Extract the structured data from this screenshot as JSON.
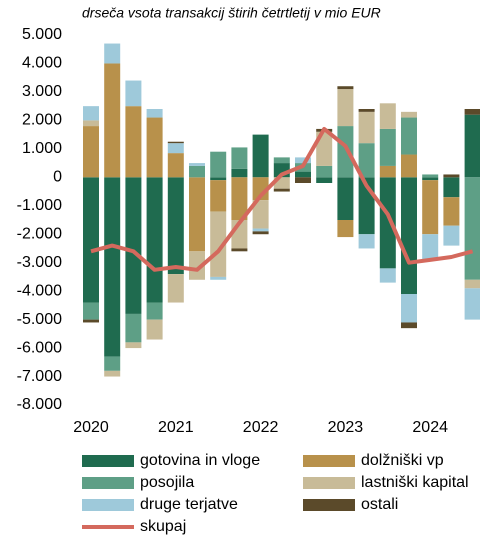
{
  "chart_data": {
    "type": "bar",
    "stacked": true,
    "title": "drseča vsota transakcij štirih četrtletij v mio EUR",
    "categories": [
      "2020",
      null,
      null,
      null,
      "2021",
      null,
      null,
      null,
      "2022",
      null,
      null,
      null,
      "2023",
      null,
      null,
      null,
      "2024",
      null,
      null
    ],
    "ylim": [
      -8000,
      5000
    ],
    "yticks": [
      {
        "value": 5000,
        "label": "5.000"
      },
      {
        "value": 4000,
        "label": "4.000"
      },
      {
        "value": 3000,
        "label": "3.000"
      },
      {
        "value": 2000,
        "label": "2.000"
      },
      {
        "value": 1000,
        "label": "1.000"
      },
      0,
      {
        "value": -1000,
        "label": "-1.000"
      },
      {
        "value": -2000,
        "label": "-2.000"
      },
      {
        "value": -3000,
        "label": "-3.000"
      },
      {
        "value": -4000,
        "label": "-4.000"
      },
      {
        "value": -5000,
        "label": "-5.000"
      },
      {
        "value": -6000,
        "label": "-6.000"
      },
      {
        "value": -7000,
        "label": "-7.000"
      },
      {
        "value": -8000,
        "label": "-8.000"
      }
    ],
    "series": [
      {
        "name": "gotovina in vloge",
        "color": "#1f6b4f",
        "values": [
          -4400,
          -6300,
          -4800,
          -4400,
          -3400,
          0,
          -100,
          300,
          1500,
          500,
          200,
          -200,
          -1500,
          -2000,
          -3200,
          -4100,
          -100,
          -700,
          2200
        ]
      },
      {
        "name": "dolžniški vp",
        "color": "#b8914b",
        "values": [
          1800,
          4000,
          2500,
          2100,
          850,
          -2600,
          -1100,
          -1500,
          -800,
          0,
          0,
          0,
          -600,
          0,
          400,
          800,
          -1900,
          -1000,
          0
        ]
      },
      {
        "name": "posojila",
        "color": "#5e9f86",
        "values": [
          -600,
          -500,
          -1000,
          -600,
          0,
          400,
          900,
          750,
          0,
          200,
          300,
          400,
          1800,
          1200,
          1300,
          1300,
          100,
          0,
          -3600
        ]
      },
      {
        "name": "lastniški kapital",
        "color": "#c8bb98",
        "values": [
          200,
          -200,
          -200,
          -700,
          -1000,
          -1000,
          -2300,
          -1000,
          -1000,
          -400,
          0,
          1200,
          1300,
          1100,
          900,
          200,
          0,
          0,
          -300
        ]
      },
      {
        "name": "druge terjatve",
        "color": "#9ec9da",
        "values": [
          500,
          700,
          900,
          300,
          350,
          100,
          -100,
          0,
          -100,
          0,
          200,
          0,
          0,
          -500,
          -500,
          -1000,
          -900,
          -700,
          -1100
        ]
      },
      {
        "name": "ostali",
        "color": "#5b4a2a",
        "values": [
          -100,
          0,
          0,
          0,
          50,
          0,
          0,
          -100,
          -100,
          -100,
          -200,
          100,
          100,
          100,
          0,
          -200,
          0,
          100,
          200
        ]
      },
      {
        "name": "skupaj",
        "type": "line",
        "color": "#d4695d",
        "values": [
          -2600,
          -2400,
          -2600,
          -3250,
          -3150,
          -3250,
          -2600,
          -1600,
          -650,
          100,
          400,
          1700,
          1100,
          -300,
          -1300,
          -3000,
          -2900,
          -2800,
          -2600
        ]
      }
    ]
  }
}
